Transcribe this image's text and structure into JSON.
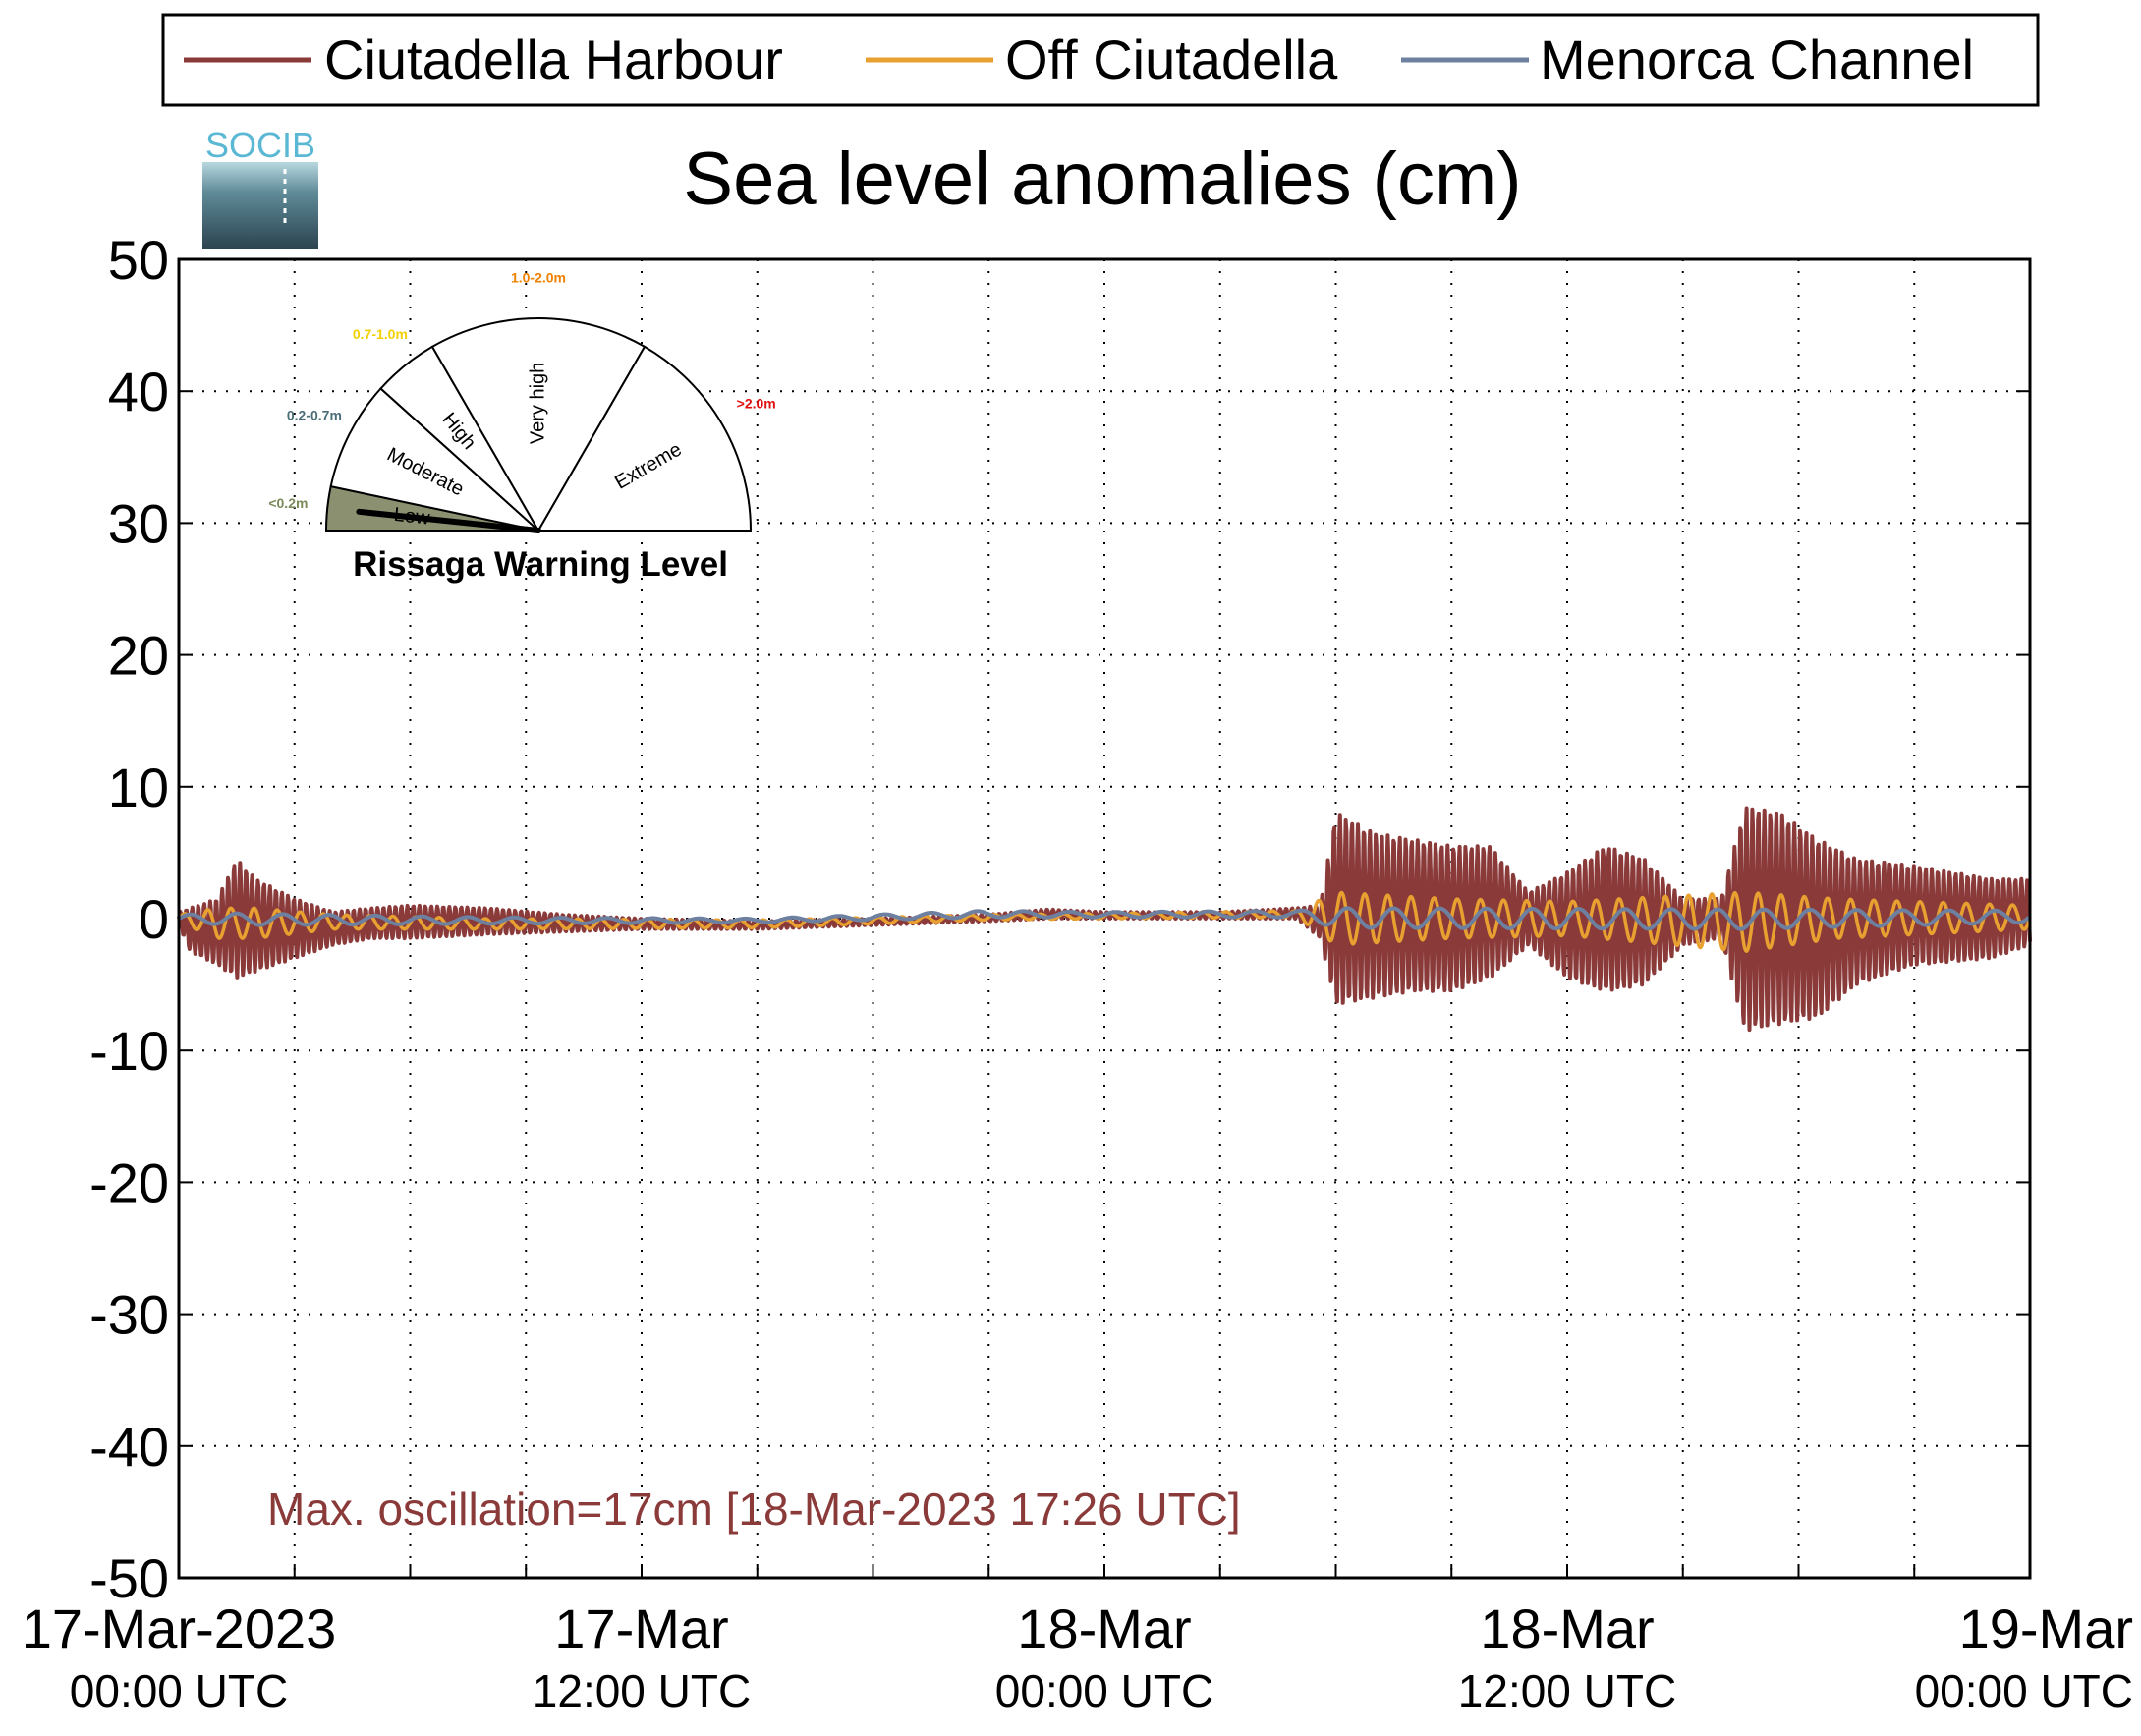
{
  "logo": {
    "text": "SOCIB"
  },
  "gauge": {
    "title": "Rissaga Warning Level",
    "needle_value_m": 0.1,
    "levels": [
      {
        "name": "Low",
        "range": "<0.2m",
        "range_color": "#7a8a5a",
        "from_m": 0.0,
        "to_m": 0.2,
        "fill": "#8a9070"
      },
      {
        "name": "Moderate",
        "range": "0.2-0.7m",
        "range_color": "#4a6e78",
        "from_m": 0.2,
        "to_m": 0.7,
        "fill": "#ffffff"
      },
      {
        "name": "High",
        "range": "0.7-1.0m",
        "range_color": "#f2d000",
        "from_m": 0.7,
        "to_m": 1.0,
        "fill": "#ffffff"
      },
      {
        "name": "Very high",
        "range": "1.0-2.0m",
        "range_color": "#f08000",
        "from_m": 1.0,
        "to_m": 2.0,
        "fill": "#ffffff"
      },
      {
        "name": "Extreme",
        "range": ">2.0m",
        "range_color": "#e01010",
        "from_m": 2.0,
        "to_m": 3.0,
        "fill": "#ffffff"
      }
    ]
  },
  "chart_data": {
    "type": "line",
    "title": "Sea level anomalies (cm)",
    "xlabel": "",
    "ylabel": "",
    "ylim": [
      -50,
      50
    ],
    "yticks": [
      50,
      40,
      30,
      20,
      10,
      0,
      -10,
      -20,
      -30,
      -40,
      -50
    ],
    "xlim": [
      "2023-03-17 00:00",
      "2023-03-19 00:00"
    ],
    "x_gridlines_hours": [
      3,
      6,
      9,
      12,
      15,
      18,
      21,
      24,
      27,
      30,
      33,
      36,
      39,
      42,
      45
    ],
    "xticks": [
      {
        "hour": 0,
        "line1": "17-Mar-2023",
        "line2": "00:00 UTC"
      },
      {
        "hour": 12,
        "line1": "17-Mar",
        "line2": "12:00 UTC"
      },
      {
        "hour": 24,
        "line1": "18-Mar",
        "line2": "00:00 UTC"
      },
      {
        "hour": 36,
        "line1": "18-Mar",
        "line2": "12:00 UTC"
      },
      {
        "hour": 48,
        "line1": "19-Mar",
        "line2": "00:00 UTC"
      }
    ],
    "grid": true,
    "legend_position": "top",
    "annotation": "Max. oscillation=17cm [18-Mar-2023 17:26 UTC]",
    "series": [
      {
        "name": "Ciutadella Harbour",
        "color": "#8b3a3a",
        "envelope": [
          {
            "hour": 0.0,
            "min": -0.5,
            "max": 0.5
          },
          {
            "hour": 0.3,
            "min": -2.5,
            "max": 0.8
          },
          {
            "hour": 1.0,
            "min": -3.5,
            "max": 1.5
          },
          {
            "hour": 1.5,
            "min": -4.5,
            "max": 4.5
          },
          {
            "hour": 2.0,
            "min": -4.0,
            "max": 3.0
          },
          {
            "hour": 3.0,
            "min": -3.0,
            "max": 1.5
          },
          {
            "hour": 4.0,
            "min": -2.0,
            "max": 0.5
          },
          {
            "hour": 5.0,
            "min": -1.5,
            "max": 0.8
          },
          {
            "hour": 6.0,
            "min": -1.5,
            "max": 1.0
          },
          {
            "hour": 8.0,
            "min": -1.2,
            "max": 0.8
          },
          {
            "hour": 10.0,
            "min": -1.0,
            "max": 0.3
          },
          {
            "hour": 12.0,
            "min": -0.8,
            "max": 0.0
          },
          {
            "hour": 15.0,
            "min": -0.8,
            "max": -0.2
          },
          {
            "hour": 18.0,
            "min": -0.5,
            "max": 0.0
          },
          {
            "hour": 21.0,
            "min": -0.2,
            "max": 0.3
          },
          {
            "hour": 22.5,
            "min": 0.0,
            "max": 0.7
          },
          {
            "hour": 24.0,
            "min": 0.0,
            "max": 0.5
          },
          {
            "hour": 27.0,
            "min": 0.0,
            "max": 0.5
          },
          {
            "hour": 29.0,
            "min": 0.0,
            "max": 0.8
          },
          {
            "hour": 29.6,
            "min": -1.5,
            "max": 1.0
          },
          {
            "hour": 30.0,
            "min": -6.5,
            "max": 8.0
          },
          {
            "hour": 31.0,
            "min": -6.0,
            "max": 6.5
          },
          {
            "hour": 32.0,
            "min": -5.5,
            "max": 6.0
          },
          {
            "hour": 33.0,
            "min": -5.5,
            "max": 5.5
          },
          {
            "hour": 34.0,
            "min": -4.5,
            "max": 5.5
          },
          {
            "hour": 35.0,
            "min": -2.0,
            "max": 2.0
          },
          {
            "hour": 36.0,
            "min": -4.5,
            "max": 3.5
          },
          {
            "hour": 37.0,
            "min": -5.5,
            "max": 5.5
          },
          {
            "hour": 38.0,
            "min": -5.0,
            "max": 4.5
          },
          {
            "hour": 39.0,
            "min": -2.0,
            "max": 1.5
          },
          {
            "hour": 40.0,
            "min": -1.5,
            "max": 1.5
          },
          {
            "hour": 40.6,
            "min": -8.5,
            "max": 8.5
          },
          {
            "hour": 41.5,
            "min": -8.0,
            "max": 8.0
          },
          {
            "hour": 42.5,
            "min": -7.5,
            "max": 6.0
          },
          {
            "hour": 43.5,
            "min": -5.0,
            "max": 4.5
          },
          {
            "hour": 45.0,
            "min": -3.5,
            "max": 4.0
          },
          {
            "hour": 47.0,
            "min": -3.0,
            "max": 3.0
          },
          {
            "hour": 48.0,
            "min": -2.0,
            "max": 3.0
          }
        ]
      },
      {
        "name": "Off Ciutadella",
        "color": "#e8a030",
        "envelope": [
          {
            "hour": 0.0,
            "min": -0.3,
            "max": 0.3
          },
          {
            "hour": 1.0,
            "min": -1.5,
            "max": 0.8
          },
          {
            "hour": 2.0,
            "min": -1.5,
            "max": 0.8
          },
          {
            "hour": 4.0,
            "min": -0.8,
            "max": 0.3
          },
          {
            "hour": 8.0,
            "min": -0.8,
            "max": 0.0
          },
          {
            "hour": 15.0,
            "min": -0.7,
            "max": -0.1
          },
          {
            "hour": 21.0,
            "min": -0.1,
            "max": 0.3
          },
          {
            "hour": 24.0,
            "min": 0.0,
            "max": 0.4
          },
          {
            "hour": 29.0,
            "min": 0.1,
            "max": 0.6
          },
          {
            "hour": 30.0,
            "min": -2.0,
            "max": 2.0
          },
          {
            "hour": 33.0,
            "min": -1.5,
            "max": 1.5
          },
          {
            "hour": 36.0,
            "min": -1.3,
            "max": 1.3
          },
          {
            "hour": 40.6,
            "min": -2.5,
            "max": 2.0
          },
          {
            "hour": 43.0,
            "min": -1.5,
            "max": 1.5
          },
          {
            "hour": 48.0,
            "min": -0.8,
            "max": 1.0
          }
        ]
      },
      {
        "name": "Menorca Channel",
        "color": "#6e80a0",
        "envelope": [
          {
            "hour": 0.0,
            "min": -0.3,
            "max": 0.3
          },
          {
            "hour": 1.5,
            "min": -0.5,
            "max": 0.4
          },
          {
            "hour": 8.0,
            "min": -0.4,
            "max": 0.1
          },
          {
            "hour": 15.0,
            "min": -0.3,
            "max": 0.0
          },
          {
            "hour": 21.0,
            "min": 0.1,
            "max": 0.6
          },
          {
            "hour": 24.0,
            "min": 0.1,
            "max": 0.5
          },
          {
            "hour": 29.0,
            "min": 0.1,
            "max": 0.6
          },
          {
            "hour": 30.0,
            "min": -0.7,
            "max": 0.8
          },
          {
            "hour": 40.6,
            "min": -0.8,
            "max": 0.7
          },
          {
            "hour": 48.0,
            "min": -0.3,
            "max": 0.6
          }
        ]
      }
    ]
  }
}
